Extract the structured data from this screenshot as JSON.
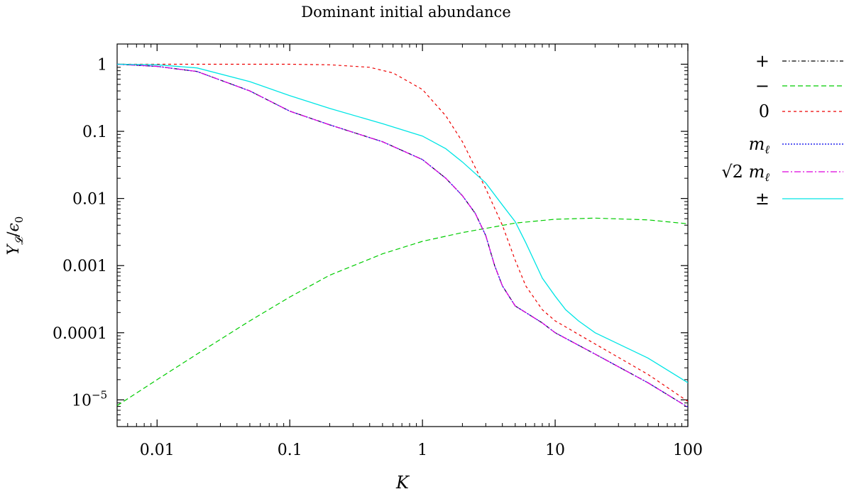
{
  "chart_data": {
    "type": "line",
    "title": "Dominant initial abundance",
    "xlabel": "K",
    "ylabel": "Y_L/ε_0",
    "xscale": "log",
    "yscale": "log",
    "xlim": [
      0.005,
      100
    ],
    "ylim": [
      4e-06,
      2
    ],
    "grid": false,
    "legend_position": "outside-right",
    "x_ticks": [
      {
        "value": 0.01,
        "label": "0.01"
      },
      {
        "value": 0.1,
        "label": "0.1"
      },
      {
        "value": 1,
        "label": "1"
      },
      {
        "value": 10,
        "label": "10"
      },
      {
        "value": 100,
        "label": "100"
      }
    ],
    "y_ticks": [
      {
        "value": 1,
        "label": "1",
        "sup": ""
      },
      {
        "value": 0.1,
        "label": "0.1",
        "sup": ""
      },
      {
        "value": 0.01,
        "label": "0.01",
        "sup": ""
      },
      {
        "value": 0.001,
        "label": "0.001",
        "sup": ""
      },
      {
        "value": 0.0001,
        "label": "0.0001",
        "sup": ""
      },
      {
        "value": 1e-05,
        "label": "10",
        "sup": "−5"
      }
    ],
    "series": [
      {
        "name": "+",
        "color": "#000000",
        "dash": "6,3,1.5,3",
        "width": 1.2,
        "x": [
          0.005,
          0.01,
          0.02,
          0.05,
          0.1,
          0.2,
          0.5,
          1,
          1.5,
          2,
          2.5,
          3,
          3.5,
          4,
          5,
          6,
          8,
          10,
          20,
          50,
          100
        ],
        "y": [
          1,
          0.93,
          0.78,
          0.4,
          0.2,
          0.125,
          0.07,
          0.038,
          0.02,
          0.011,
          0.006,
          0.0028,
          0.001,
          0.0005,
          0.00025,
          0.0002,
          0.00014,
          0.0001,
          4.8e-05,
          1.8e-05,
          7.8e-06
        ]
      },
      {
        "name": "−",
        "color": "#00cc00",
        "dash": "7,4",
        "width": 1.2,
        "x": [
          0.005,
          0.01,
          0.02,
          0.05,
          0.1,
          0.2,
          0.5,
          1,
          2,
          5,
          10,
          20,
          50,
          100
        ],
        "y": [
          8.2e-06,
          2e-05,
          4.8e-05,
          0.00015,
          0.00034,
          0.00072,
          0.0015,
          0.0023,
          0.0031,
          0.0043,
          0.0049,
          0.0051,
          0.0048,
          0.0042
        ]
      },
      {
        "name": "0",
        "color": "#ee0000",
        "dash": "4,4",
        "width": 1.2,
        "x": [
          0.005,
          0.01,
          0.05,
          0.1,
          0.2,
          0.4,
          0.6,
          1,
          1.5,
          2,
          3,
          4,
          5,
          6,
          8,
          10,
          20,
          50,
          100
        ],
        "y": [
          1,
          1,
          1,
          1,
          0.98,
          0.9,
          0.74,
          0.42,
          0.17,
          0.07,
          0.014,
          0.004,
          0.0012,
          0.0005,
          0.00022,
          0.00015,
          6.8e-05,
          2.4e-05,
          9.5e-06
        ]
      },
      {
        "name": "m_ℓ",
        "color": "#2222ee",
        "dash": "2,2",
        "width": 1.4,
        "x": [
          0.005,
          0.01,
          0.02,
          0.05,
          0.1,
          0.2,
          0.5,
          1,
          1.5,
          2,
          2.5,
          3,
          3.5,
          4,
          5,
          6,
          8,
          10,
          20,
          50,
          100
        ],
        "y": [
          1,
          0.93,
          0.78,
          0.4,
          0.2,
          0.125,
          0.07,
          0.038,
          0.02,
          0.011,
          0.006,
          0.0028,
          0.001,
          0.0005,
          0.00025,
          0.0002,
          0.00014,
          0.0001,
          4.8e-05,
          1.8e-05,
          7.8e-06
        ]
      },
      {
        "name": "√2 m_ℓ",
        "color": "#dd00dd",
        "dash": "9,3,2,3",
        "width": 1.2,
        "x": [
          0.005,
          0.01,
          0.02,
          0.05,
          0.1,
          0.2,
          0.5,
          1,
          1.5,
          2,
          2.5,
          3,
          3.5,
          4,
          5,
          6,
          8,
          10,
          20,
          50,
          100
        ],
        "y": [
          1,
          0.93,
          0.78,
          0.4,
          0.2,
          0.125,
          0.07,
          0.038,
          0.02,
          0.011,
          0.006,
          0.0028,
          0.001,
          0.0005,
          0.00025,
          0.0002,
          0.00014,
          0.0001,
          4.8e-05,
          1.8e-05,
          7.8e-06
        ]
      },
      {
        "name": "±",
        "color": "#00e5e5",
        "dash": "",
        "width": 1.3,
        "x": [
          0.005,
          0.01,
          0.02,
          0.05,
          0.1,
          0.2,
          0.5,
          1,
          1.5,
          2,
          3,
          4,
          5,
          6,
          8,
          10,
          12,
          15,
          20,
          50,
          100
        ],
        "y": [
          1,
          0.98,
          0.88,
          0.55,
          0.34,
          0.22,
          0.13,
          0.085,
          0.055,
          0.035,
          0.017,
          0.008,
          0.0045,
          0.0022,
          0.00065,
          0.00035,
          0.00022,
          0.00015,
          0.0001,
          4.2e-05,
          1.8e-05
        ]
      }
    ]
  }
}
